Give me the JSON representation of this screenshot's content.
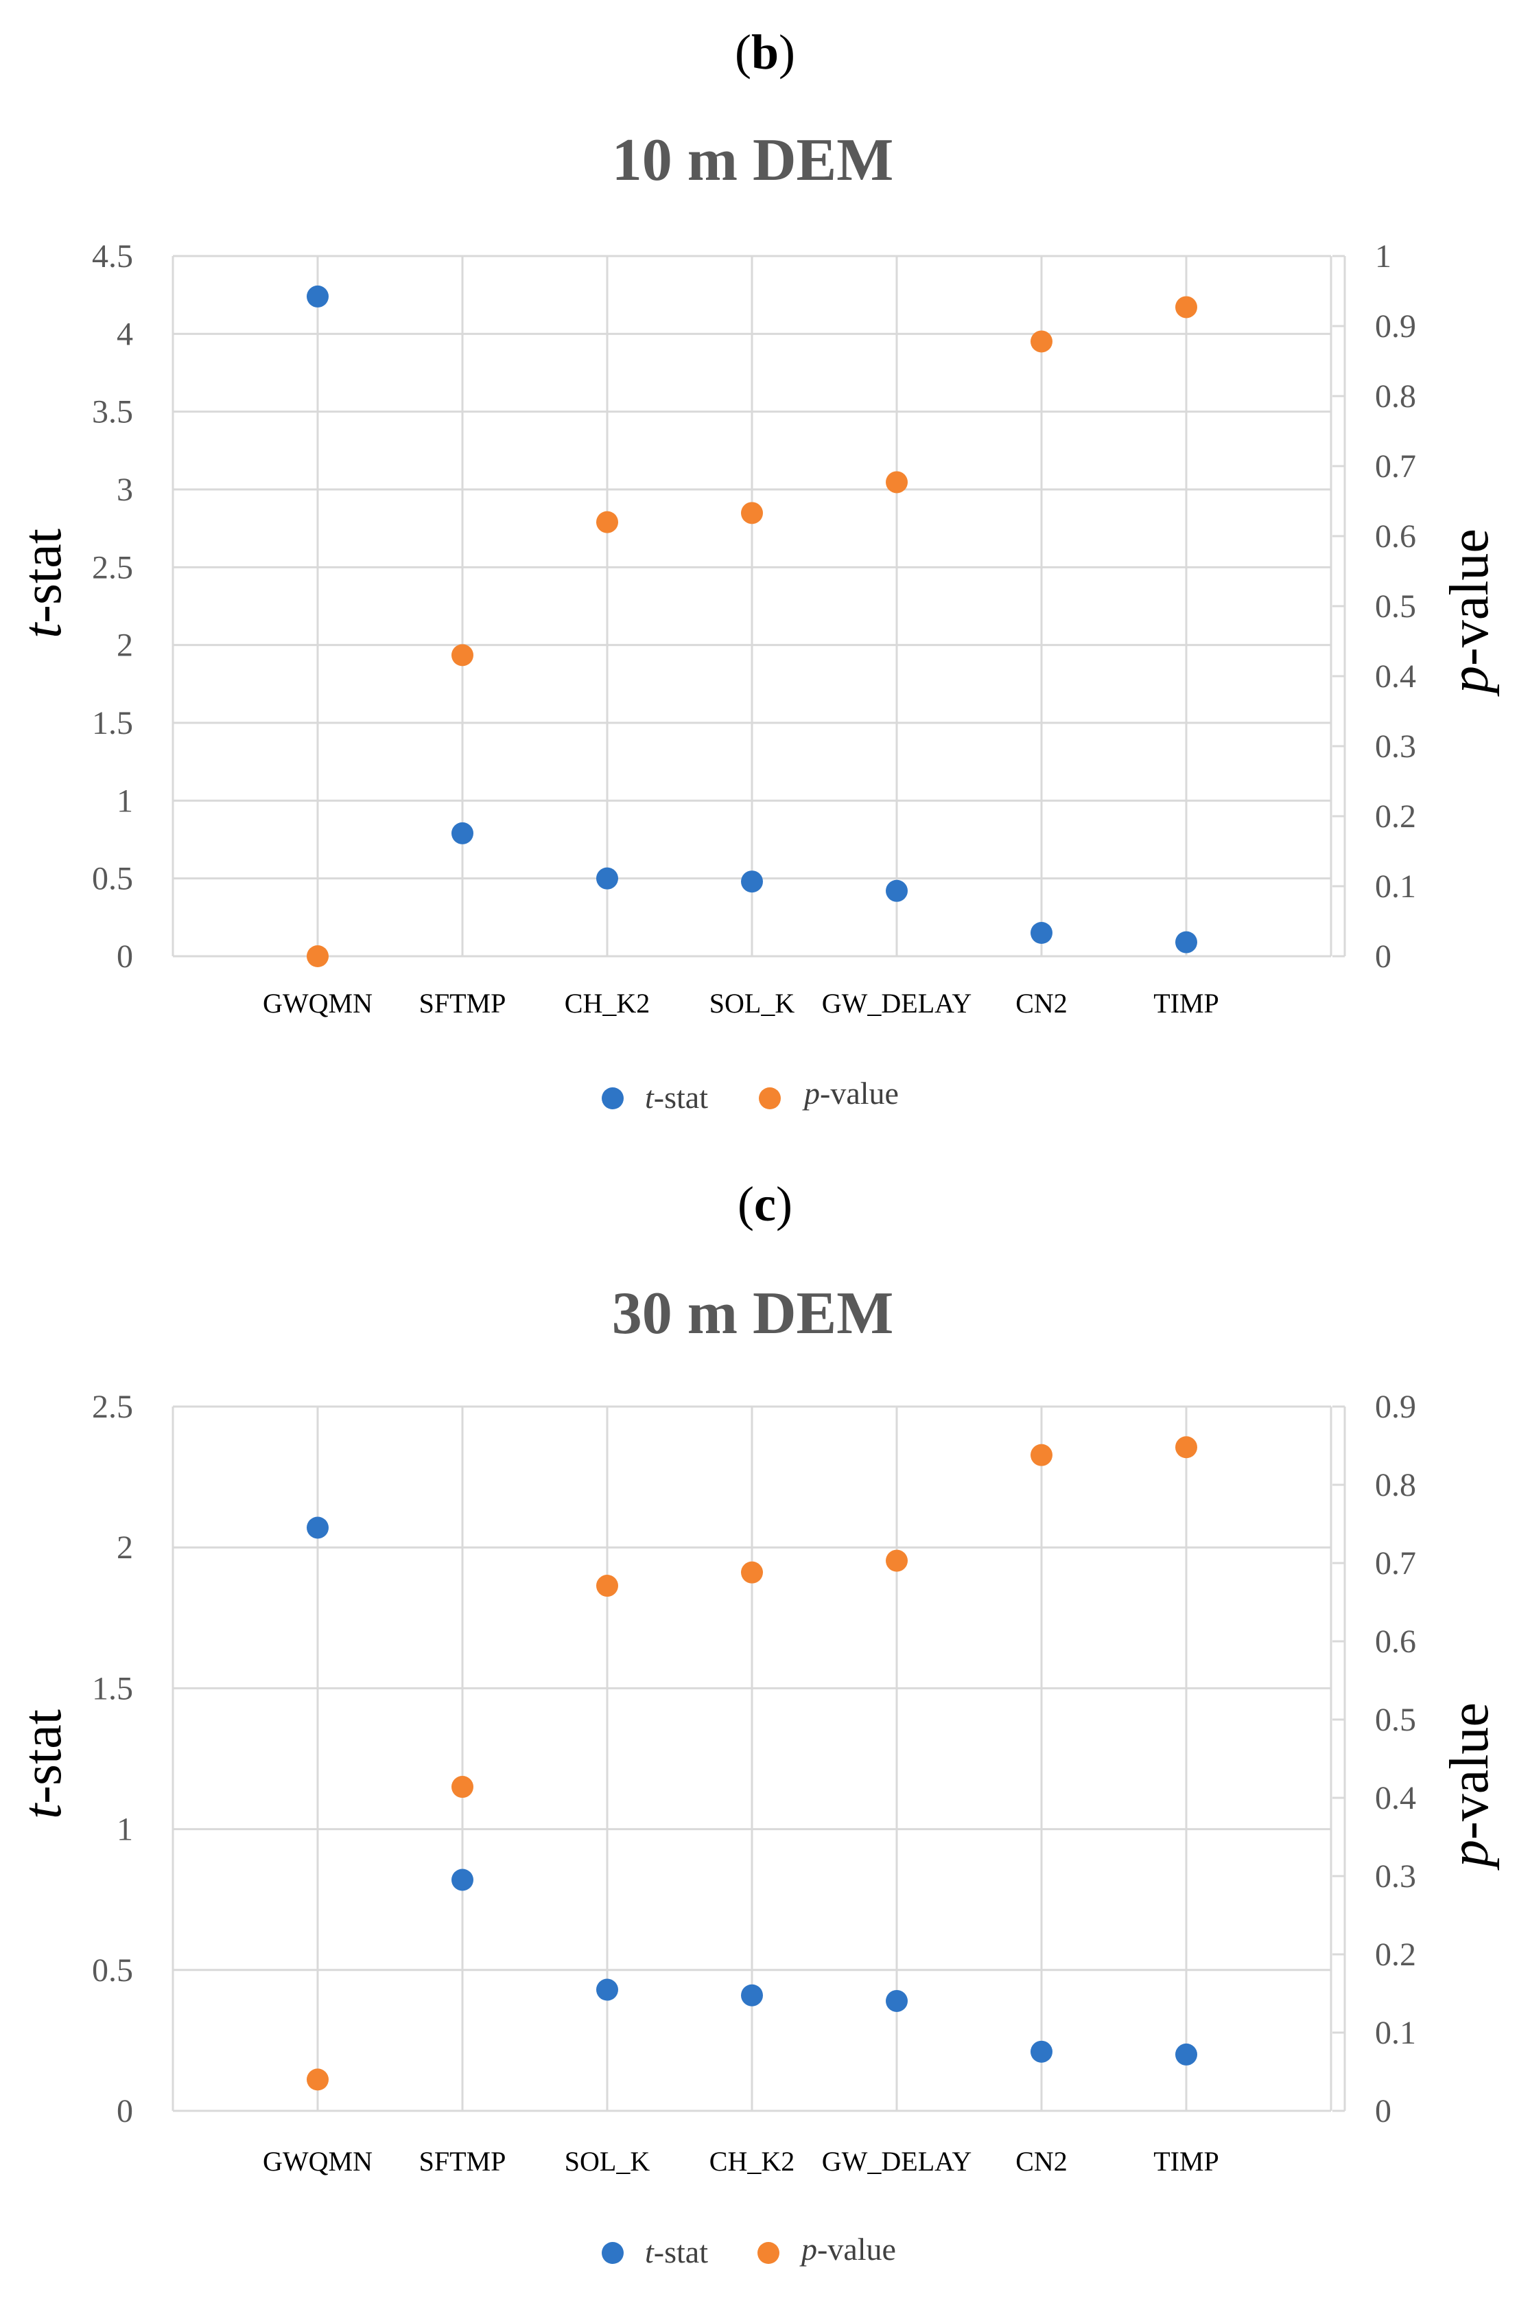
{
  "colors": {
    "t_stat": "#2E75C6",
    "p_value": "#F4842F",
    "grid": "#D9D9D9",
    "text": "#595959"
  },
  "panels": [
    {
      "label_open": "(",
      "label_letter": "b",
      "label_close": ")"
    },
    {
      "label_open": "(",
      "label_letter": "c",
      "label_close": ")"
    }
  ],
  "chart_data": [
    {
      "type": "scatter",
      "title": "10 m DEM",
      "categories": [
        "GWQMN",
        "SFTMP",
        "CH_K2",
        "SOL_K",
        "GW_DELAY",
        "CN2",
        "TIMP"
      ],
      "ylabel_left": {
        "italic": "t",
        "rest": "-stat"
      },
      "ylabel_right": {
        "italic": "p",
        "rest": "-value"
      },
      "ylim_left": [
        0,
        4.5
      ],
      "ylim_right": [
        0,
        1
      ],
      "yticks_left": [
        "0",
        "0.5",
        "1",
        "1.5",
        "2",
        "2.5",
        "3",
        "3.5",
        "4",
        "4.5"
      ],
      "yticks_right": [
        "0",
        "0.1",
        "0.2",
        "0.3",
        "0.4",
        "0.5",
        "0.6",
        "0.7",
        "0.8",
        "0.9",
        "1"
      ],
      "series": [
        {
          "name": "t-stat",
          "axis": "left",
          "values": [
            4.24,
            0.79,
            0.5,
            0.48,
            0.42,
            0.15,
            0.09
          ]
        },
        {
          "name": "p-value",
          "axis": "right",
          "values": [
            0.0,
            0.43,
            0.62,
            0.633,
            0.677,
            0.878,
            0.927
          ]
        }
      ],
      "legend": [
        {
          "italic": "t",
          "rest": "-stat"
        },
        {
          "italic": "p",
          "rest": "-value"
        }
      ]
    },
    {
      "type": "scatter",
      "title": "30 m DEM",
      "categories": [
        "GWQMN",
        "SFTMP",
        "SOL_K",
        "CH_K2",
        "GW_DELAY",
        "CN2",
        "TIMP"
      ],
      "ylabel_left": {
        "italic": "t",
        "rest": "-stat"
      },
      "ylabel_right": {
        "italic": "p",
        "rest": "-value"
      },
      "ylim_left": [
        0,
        2.5
      ],
      "ylim_right": [
        0,
        0.9
      ],
      "yticks_left": [
        "0",
        "0.5",
        "1",
        "1.5",
        "2",
        "2.5"
      ],
      "yticks_right": [
        "0",
        "0.1",
        "0.2",
        "0.3",
        "0.4",
        "0.5",
        "0.6",
        "0.7",
        "0.8",
        "0.9"
      ],
      "series": [
        {
          "name": "t-stat",
          "axis": "left",
          "values": [
            2.07,
            0.82,
            0.43,
            0.41,
            0.39,
            0.21,
            0.2
          ]
        },
        {
          "name": "p-value",
          "axis": "right",
          "values": [
            0.04,
            0.414,
            0.671,
            0.688,
            0.703,
            0.838,
            0.848
          ]
        }
      ],
      "legend": [
        {
          "italic": "t",
          "rest": "-stat"
        },
        {
          "italic": "p",
          "rest": "-value"
        }
      ]
    }
  ]
}
